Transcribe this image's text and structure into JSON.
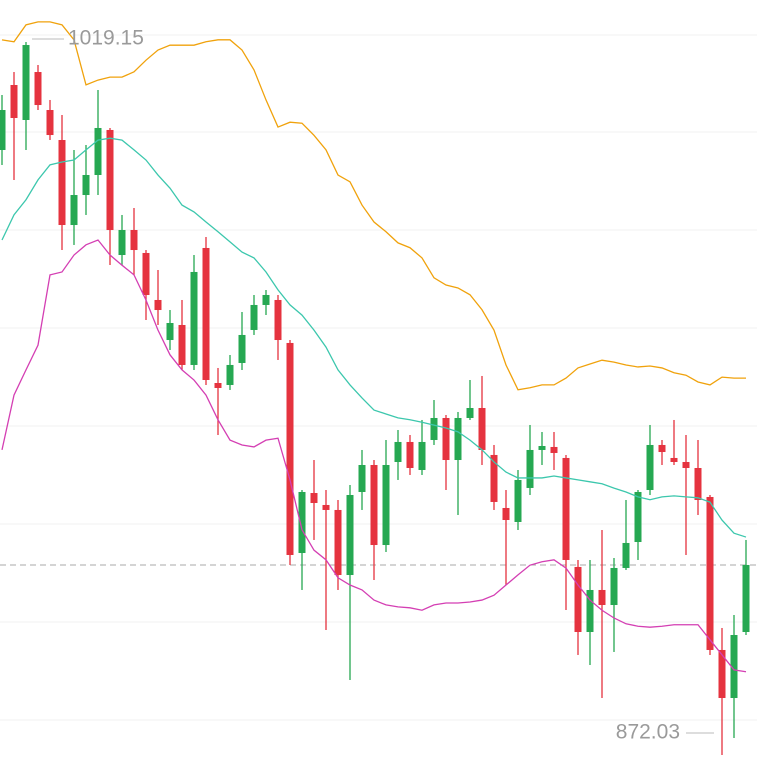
{
  "chart_data": {
    "type": "candlestick",
    "ylim": [
      867.49,
      1027.82
    ],
    "grid": true,
    "up_color": "#26a852",
    "down_color": "#e5333f",
    "open": [
      996.87,
      1010.28,
      1003.06,
      1012.96,
      1005.12,
      998.93,
      981.39,
      987.58,
      991.71,
      1001.0,
      975.2,
      980.36,
      975.62,
      965.92,
      957.66,
      960.76,
      952.51,
      976.65,
      948.79,
      948.38,
      952.92,
      959.73,
      964.89,
      965.92,
      957.05,
      913.71,
      926.09,
      923.62,
      922.59,
      909.17,
      926.3,
      931.87,
      915.36,
      932.49,
      936.62,
      930.84,
      937.03,
      941.57,
      932.9,
      941.57,
      943.63,
      933.94,
      923.0,
      920.11,
      927.13,
      934.97,
      935.59,
      933.32,
      910.83,
      897.41,
      906.08,
      902.98,
      910.62,
      915.98,
      926.71,
      936.0,
      933.32,
      932.49,
      931.25,
      925.27,
      893.7,
      883.79,
      897.41
    ],
    "high": [
      1008.22,
      1012.96,
      1019.15,
      1014.41,
      1007.19,
      1004.09,
      996.87,
      997.9,
      1009.25,
      1001.41,
      983.46,
      984.9,
      976.23,
      972.11,
      963.85,
      965.92,
      975.2,
      978.92,
      951.89,
      954.57,
      963.44,
      966.95,
      967.98,
      966.95,
      957.66,
      926.71,
      932.9,
      926.71,
      924.65,
      927.75,
      934.97,
      932.9,
      937.03,
      939.09,
      938.06,
      941.16,
      945.28,
      942.19,
      942.81,
      949.41,
      950.24,
      936.0,
      926.71,
      930.84,
      940.13,
      938.68,
      938.68,
      933.94,
      912.27,
      912.27,
      918.46,
      912.68,
      924.65,
      926.71,
      940.13,
      937.03,
      941.16,
      938.06,
      937.03,
      925.68,
      898.24,
      900.92,
      916.4
    ],
    "low": [
      993.77,
      990.68,
      996.87,
      1005.12,
      998.93,
      976.23,
      977.27,
      983.46,
      987.58,
      973.14,
      973.14,
      971.08,
      961.79,
      960.76,
      955.6,
      951.47,
      951.47,
      948.38,
      938.06,
      947.35,
      951.47,
      958.7,
      962.82,
      953.54,
      911.24,
      906.08,
      916.4,
      897.82,
      906.08,
      887.51,
      922.59,
      908.14,
      913.92,
      928.78,
      929.81,
      929.81,
      936.0,
      926.71,
      921.55,
      941.16,
      931.87,
      922.59,
      907.11,
      918.46,
      925.68,
      931.87,
      930.84,
      901.95,
      892.67,
      890.6,
      883.79,
      893.29,
      910.21,
      912.27,
      925.68,
      931.87,
      931.87,
      913.3,
      921.55,
      892.67,
      872.03,
      875.54,
      896.79
    ],
    "close": [
      1005.12,
      1003.47,
      1018.53,
      1006.15,
      999.96,
      981.39,
      987.58,
      991.71,
      1001.41,
      980.36,
      980.36,
      976.23,
      966.95,
      963.85,
      961.17,
      952.51,
      971.7,
      949.41,
      947.76,
      952.51,
      958.7,
      964.89,
      966.95,
      957.66,
      913.3,
      926.3,
      924.03,
      922.59,
      909.17,
      925.68,
      931.87,
      915.36,
      931.87,
      936.62,
      931.25,
      936.62,
      941.57,
      932.9,
      941.57,
      943.63,
      934.97,
      924.24,
      920.52,
      928.78,
      934.97,
      935.79,
      934.35,
      912.27,
      897.41,
      906.08,
      902.98,
      910.62,
      915.78,
      926.3,
      936.0,
      934.55,
      932.49,
      931.25,
      924.65,
      893.7,
      883.79,
      896.79,
      911.24
    ],
    "overlays": [
      {
        "color": "#f0a20c",
        "values": [
          1019.6,
          1019.2,
          1022.7,
          1023.3,
          1023.3,
          1022.7,
          1019.6,
          1010.3,
          1011.3,
          1011.9,
          1011.9,
          1013.0,
          1015.4,
          1017.5,
          1018.5,
          1018.5,
          1018.5,
          1019.2,
          1019.6,
          1019.6,
          1017.5,
          1013.4,
          1007.2,
          1001.6,
          1002.6,
          1002.4,
          999.9,
          996.9,
          991.7,
          990.3,
          985.5,
          982.0,
          980.0,
          977.7,
          976.7,
          974.6,
          970.5,
          969.0,
          968.4,
          967.0,
          963.9,
          959.7,
          952.5,
          947.4,
          947.8,
          948.4,
          948.4,
          949.8,
          951.9,
          952.7,
          953.5,
          953.1,
          952.5,
          952.1,
          952.3,
          951.9,
          950.9,
          950.4,
          949.0,
          948.4,
          950.0,
          949.8,
          949.8
        ]
      },
      {
        "color": "#3cc7ad",
        "values": [
          978.3,
          983.5,
          986.6,
          990.7,
          993.8,
          994.4,
          994.8,
          996.9,
          998.9,
          999.3,
          998.9,
          996.9,
          994.8,
          991.7,
          989.0,
          985.5,
          984.1,
          982.0,
          980.0,
          977.9,
          975.8,
          974.6,
          971.7,
          968.0,
          964.9,
          962.8,
          959.7,
          956.2,
          951.5,
          948.4,
          945.7,
          943.2,
          942.4,
          941.6,
          941.2,
          940.7,
          940.1,
          939.5,
          938.7,
          937.0,
          935.0,
          932.5,
          930.4,
          929.2,
          929.2,
          929.2,
          929.6,
          929.2,
          928.8,
          928.4,
          928.0,
          927.1,
          926.3,
          925.3,
          924.7,
          925.3,
          925.5,
          925.3,
          925.1,
          924.2,
          920.5,
          917.8,
          917.0
        ]
      },
      {
        "color": "#d43fb3",
        "values": [
          935.0,
          946.3,
          951.5,
          956.6,
          971.1,
          971.7,
          975.2,
          977.3,
          978.3,
          975.2,
          973.1,
          971.1,
          965.9,
          959.7,
          954.6,
          951.5,
          949.4,
          946.3,
          941.2,
          937.0,
          936.0,
          935.6,
          937.0,
          937.4,
          928.8,
          918.5,
          914.3,
          912.3,
          908.6,
          907.1,
          906.1,
          904.0,
          903.0,
          902.6,
          902.4,
          901.9,
          903.0,
          903.4,
          903.4,
          903.6,
          904.0,
          905.0,
          907.1,
          909.2,
          911.2,
          911.9,
          912.3,
          910.6,
          907.1,
          904.0,
          901.9,
          900.3,
          899.1,
          898.6,
          898.4,
          898.6,
          898.9,
          898.9,
          898.9,
          895.8,
          892.7,
          889.6,
          889.2
        ]
      }
    ],
    "max_marker": 1019.15,
    "min_marker": 872.03
  }
}
